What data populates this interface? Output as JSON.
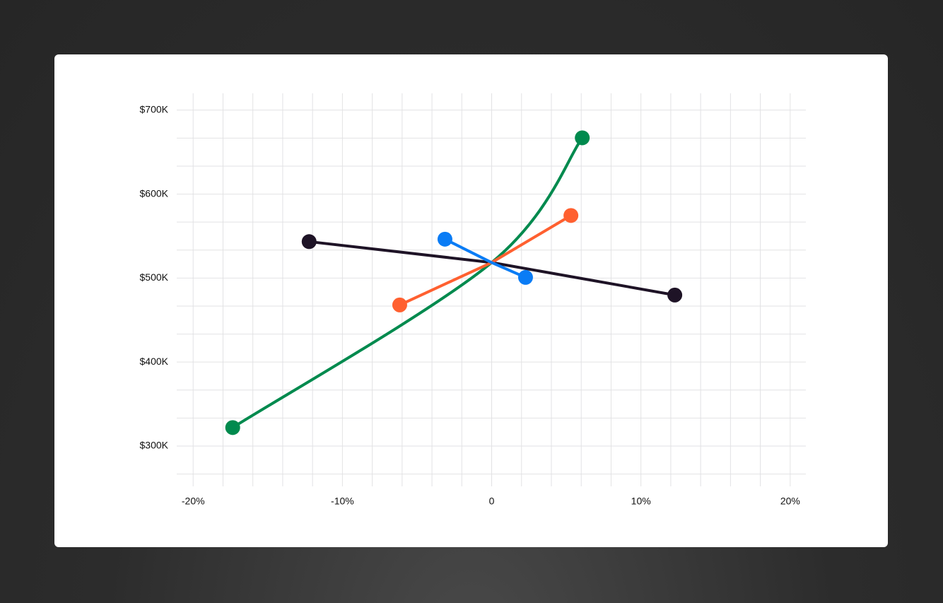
{
  "chart_data": {
    "type": "line",
    "xlim": [
      -21.1,
      21.05
    ],
    "xticks": [
      {
        "value": -20,
        "label": "-20%"
      },
      {
        "value": -10,
        "label": "-10%"
      },
      0,
      {
        "value": 10,
        "label": "10%"
      },
      {
        "value": 20,
        "label": "20%"
      }
    ],
    "xgrid": [
      -20,
      -18,
      -16,
      -14,
      -12,
      -10,
      -8,
      -6,
      -4,
      -2,
      0,
      2,
      4,
      6,
      8,
      10,
      12,
      14,
      16,
      18,
      20
    ],
    "ylim": [
      252000,
      720000
    ],
    "yticks": [
      {
        "value": 300000,
        "label": "$300K"
      },
      {
        "value": 400000,
        "label": "$400K"
      },
      {
        "value": 500000,
        "label": "$500K"
      },
      {
        "value": 600000,
        "label": "$600K"
      },
      {
        "value": 700000,
        "label": "$700K"
      }
    ],
    "ygrid": [
      266667,
      300000,
      333333,
      366667,
      400000,
      433333,
      466667,
      500000,
      533333,
      566667,
      600000,
      633333,
      666667,
      700000
    ],
    "grid": true,
    "series": [
      {
        "color": "#008a4e",
        "curve": "smooth",
        "x": [
          -17.35,
          0,
          6.07
        ],
        "values": [
          322000,
          518500,
          667000
        ]
      },
      {
        "color": "#1e1326",
        "curve": "straight",
        "x": [
          -12.23,
          0,
          12.27
        ],
        "values": [
          543400,
          518500,
          479800
        ]
      },
      {
        "color": "#ff6030",
        "curve": "straight",
        "x": [
          -6.16,
          0,
          5.31
        ],
        "values": [
          468000,
          518500,
          574500
        ]
      },
      {
        "color": "#0a7cf5",
        "curve": "straight",
        "x": [
          -3.13,
          0,
          2.27
        ],
        "values": [
          546300,
          518500,
          500800
        ]
      }
    ]
  }
}
